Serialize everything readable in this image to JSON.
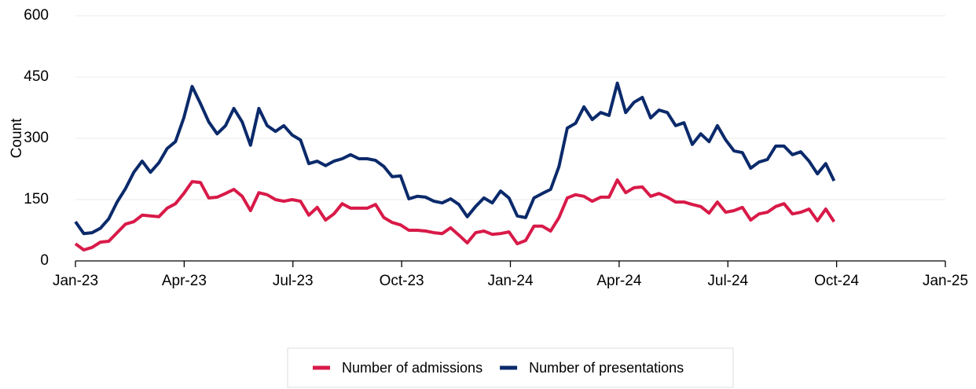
{
  "chart_data": {
    "type": "line",
    "y_label": "Count",
    "x": [
      0,
      0.23,
      0.46,
      0.69,
      0.92,
      1.15,
      1.38,
      1.61,
      1.84,
      2.07,
      2.3,
      2.53,
      2.76,
      2.99,
      3.22,
      3.45,
      3.68,
      3.91,
      4.14,
      4.37,
      4.6,
      4.83,
      5.06,
      5.29,
      5.52,
      5.75,
      5.98,
      6.21,
      6.44,
      6.67,
      6.9,
      7.13,
      7.36,
      7.59,
      7.82,
      8.05,
      8.28,
      8.51,
      8.74,
      8.97,
      9.2,
      9.43,
      9.66,
      9.89,
      10.12,
      10.35,
      10.58,
      10.81,
      11.04,
      11.27,
      11.5,
      11.73,
      11.96,
      12.19,
      12.42,
      12.65,
      12.88,
      13.11,
      13.34,
      13.57,
      13.8,
      14.03,
      14.26,
      14.49,
      14.72,
      14.95,
      15.18,
      15.41,
      15.64,
      15.87,
      16.1,
      16.33,
      16.56,
      16.79,
      17.02,
      17.25,
      17.48,
      17.71,
      17.94,
      18.17,
      18.4,
      18.63,
      18.86,
      19.09,
      19.32,
      19.55,
      19.78,
      20.01,
      20.24,
      20.47,
      20.7,
      20.93
    ],
    "series": [
      {
        "name": "Number of admissions",
        "color": "#d81a48",
        "values": [
          42,
          27,
          33,
          46,
          48,
          69,
          90,
          96,
          112,
          110,
          108,
          129,
          140,
          165,
          194,
          192,
          154,
          156,
          165,
          175,
          158,
          123,
          167,
          162,
          150,
          146,
          150,
          146,
          112,
          131,
          100,
          115,
          140,
          129,
          129,
          129,
          138,
          106,
          94,
          88,
          75,
          75,
          73,
          69,
          67,
          81,
          63,
          44,
          69,
          73,
          65,
          67,
          71,
          42,
          50,
          85,
          85,
          73,
          106,
          154,
          162,
          158,
          146,
          156,
          156,
          198,
          167,
          179,
          181,
          158,
          165,
          156,
          144,
          144,
          138,
          133,
          117,
          144,
          119,
          123,
          131,
          100,
          115,
          119,
          133,
          140,
          115,
          119,
          127,
          98,
          127,
          96
        ]
      },
      {
        "name": "Number of presentations",
        "color": "#0b2a6b",
        "values": [
          96,
          67,
          69,
          80,
          103,
          144,
          177,
          217,
          244,
          217,
          240,
          275,
          292,
          350,
          427,
          385,
          340,
          311,
          331,
          373,
          340,
          283,
          373,
          331,
          317,
          331,
          308,
          296,
          238,
          244,
          233,
          244,
          250,
          260,
          250,
          250,
          246,
          231,
          206,
          208,
          152,
          158,
          156,
          146,
          142,
          152,
          138,
          108,
          133,
          154,
          142,
          171,
          154,
          110,
          106,
          154,
          165,
          175,
          231,
          325,
          337,
          377,
          346,
          363,
          356,
          435,
          363,
          388,
          400,
          350,
          369,
          363,
          331,
          338,
          285,
          311,
          292,
          331,
          296,
          269,
          265,
          227,
          242,
          248,
          281,
          281,
          260,
          267,
          244,
          213,
          238,
          196
        ]
      }
    ],
    "xlim": [
      0,
      24
    ],
    "xticks": [
      {
        "value": 0,
        "label": "Jan-23"
      },
      {
        "value": 3,
        "label": "Apr-23"
      },
      {
        "value": 6,
        "label": "Jul-23"
      },
      {
        "value": 9,
        "label": "Oct-23"
      },
      {
        "value": 12,
        "label": "Jan-24"
      },
      {
        "value": 15,
        "label": "Apr-24"
      },
      {
        "value": 18,
        "label": "Jul-24"
      },
      {
        "value": 21,
        "label": "Oct-24"
      },
      {
        "value": 24,
        "label": "Jan-25"
      }
    ],
    "ylim": [
      0,
      600
    ],
    "yticks": [
      0,
      150,
      300,
      450,
      600
    ],
    "grid": true,
    "legend": "bottom"
  }
}
